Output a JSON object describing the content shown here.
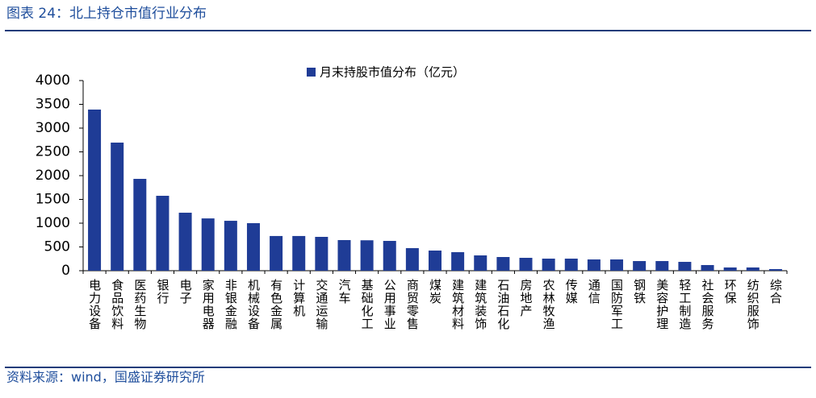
{
  "header": {
    "title": "图表 24：北上持仓市值行业分布"
  },
  "source": "资料来源：wind，国盛证券研究所",
  "chart_data": {
    "type": "bar",
    "categories": [
      "电力设备",
      "食品饮料",
      "医药生物",
      "银行",
      "电子",
      "家用电器",
      "非银金融",
      "机械设备",
      "有色金属",
      "计算机",
      "交通运输",
      "汽车",
      "基础化工",
      "公用事业",
      "商贸零售",
      "煤炭",
      "建筑材料",
      "建筑装饰",
      "石油石化",
      "房地产",
      "农林牧渔",
      "传媒",
      "通信",
      "国防军工",
      "钢铁",
      "美容护理",
      "轻工制造",
      "社会服务",
      "环保",
      "纺织服饰",
      "综合"
    ],
    "series": [
      {
        "name": "月末持股市值分布（亿元）",
        "color": "#1f3c96",
        "values": [
          3390,
          2695,
          1932,
          1576,
          1220,
          1100,
          1050,
          1000,
          730,
          730,
          712,
          644,
          640,
          627,
          475,
          424,
          390,
          322,
          288,
          271,
          254,
          254,
          237,
          237,
          203,
          203,
          186,
          119,
          68,
          68,
          34
        ]
      }
    ],
    "ylim": [
      0,
      4000
    ],
    "yticks": [
      0,
      500,
      1000,
      1500,
      2000,
      2500,
      3000,
      3500,
      4000
    ],
    "legend": "top",
    "grid": false
  }
}
